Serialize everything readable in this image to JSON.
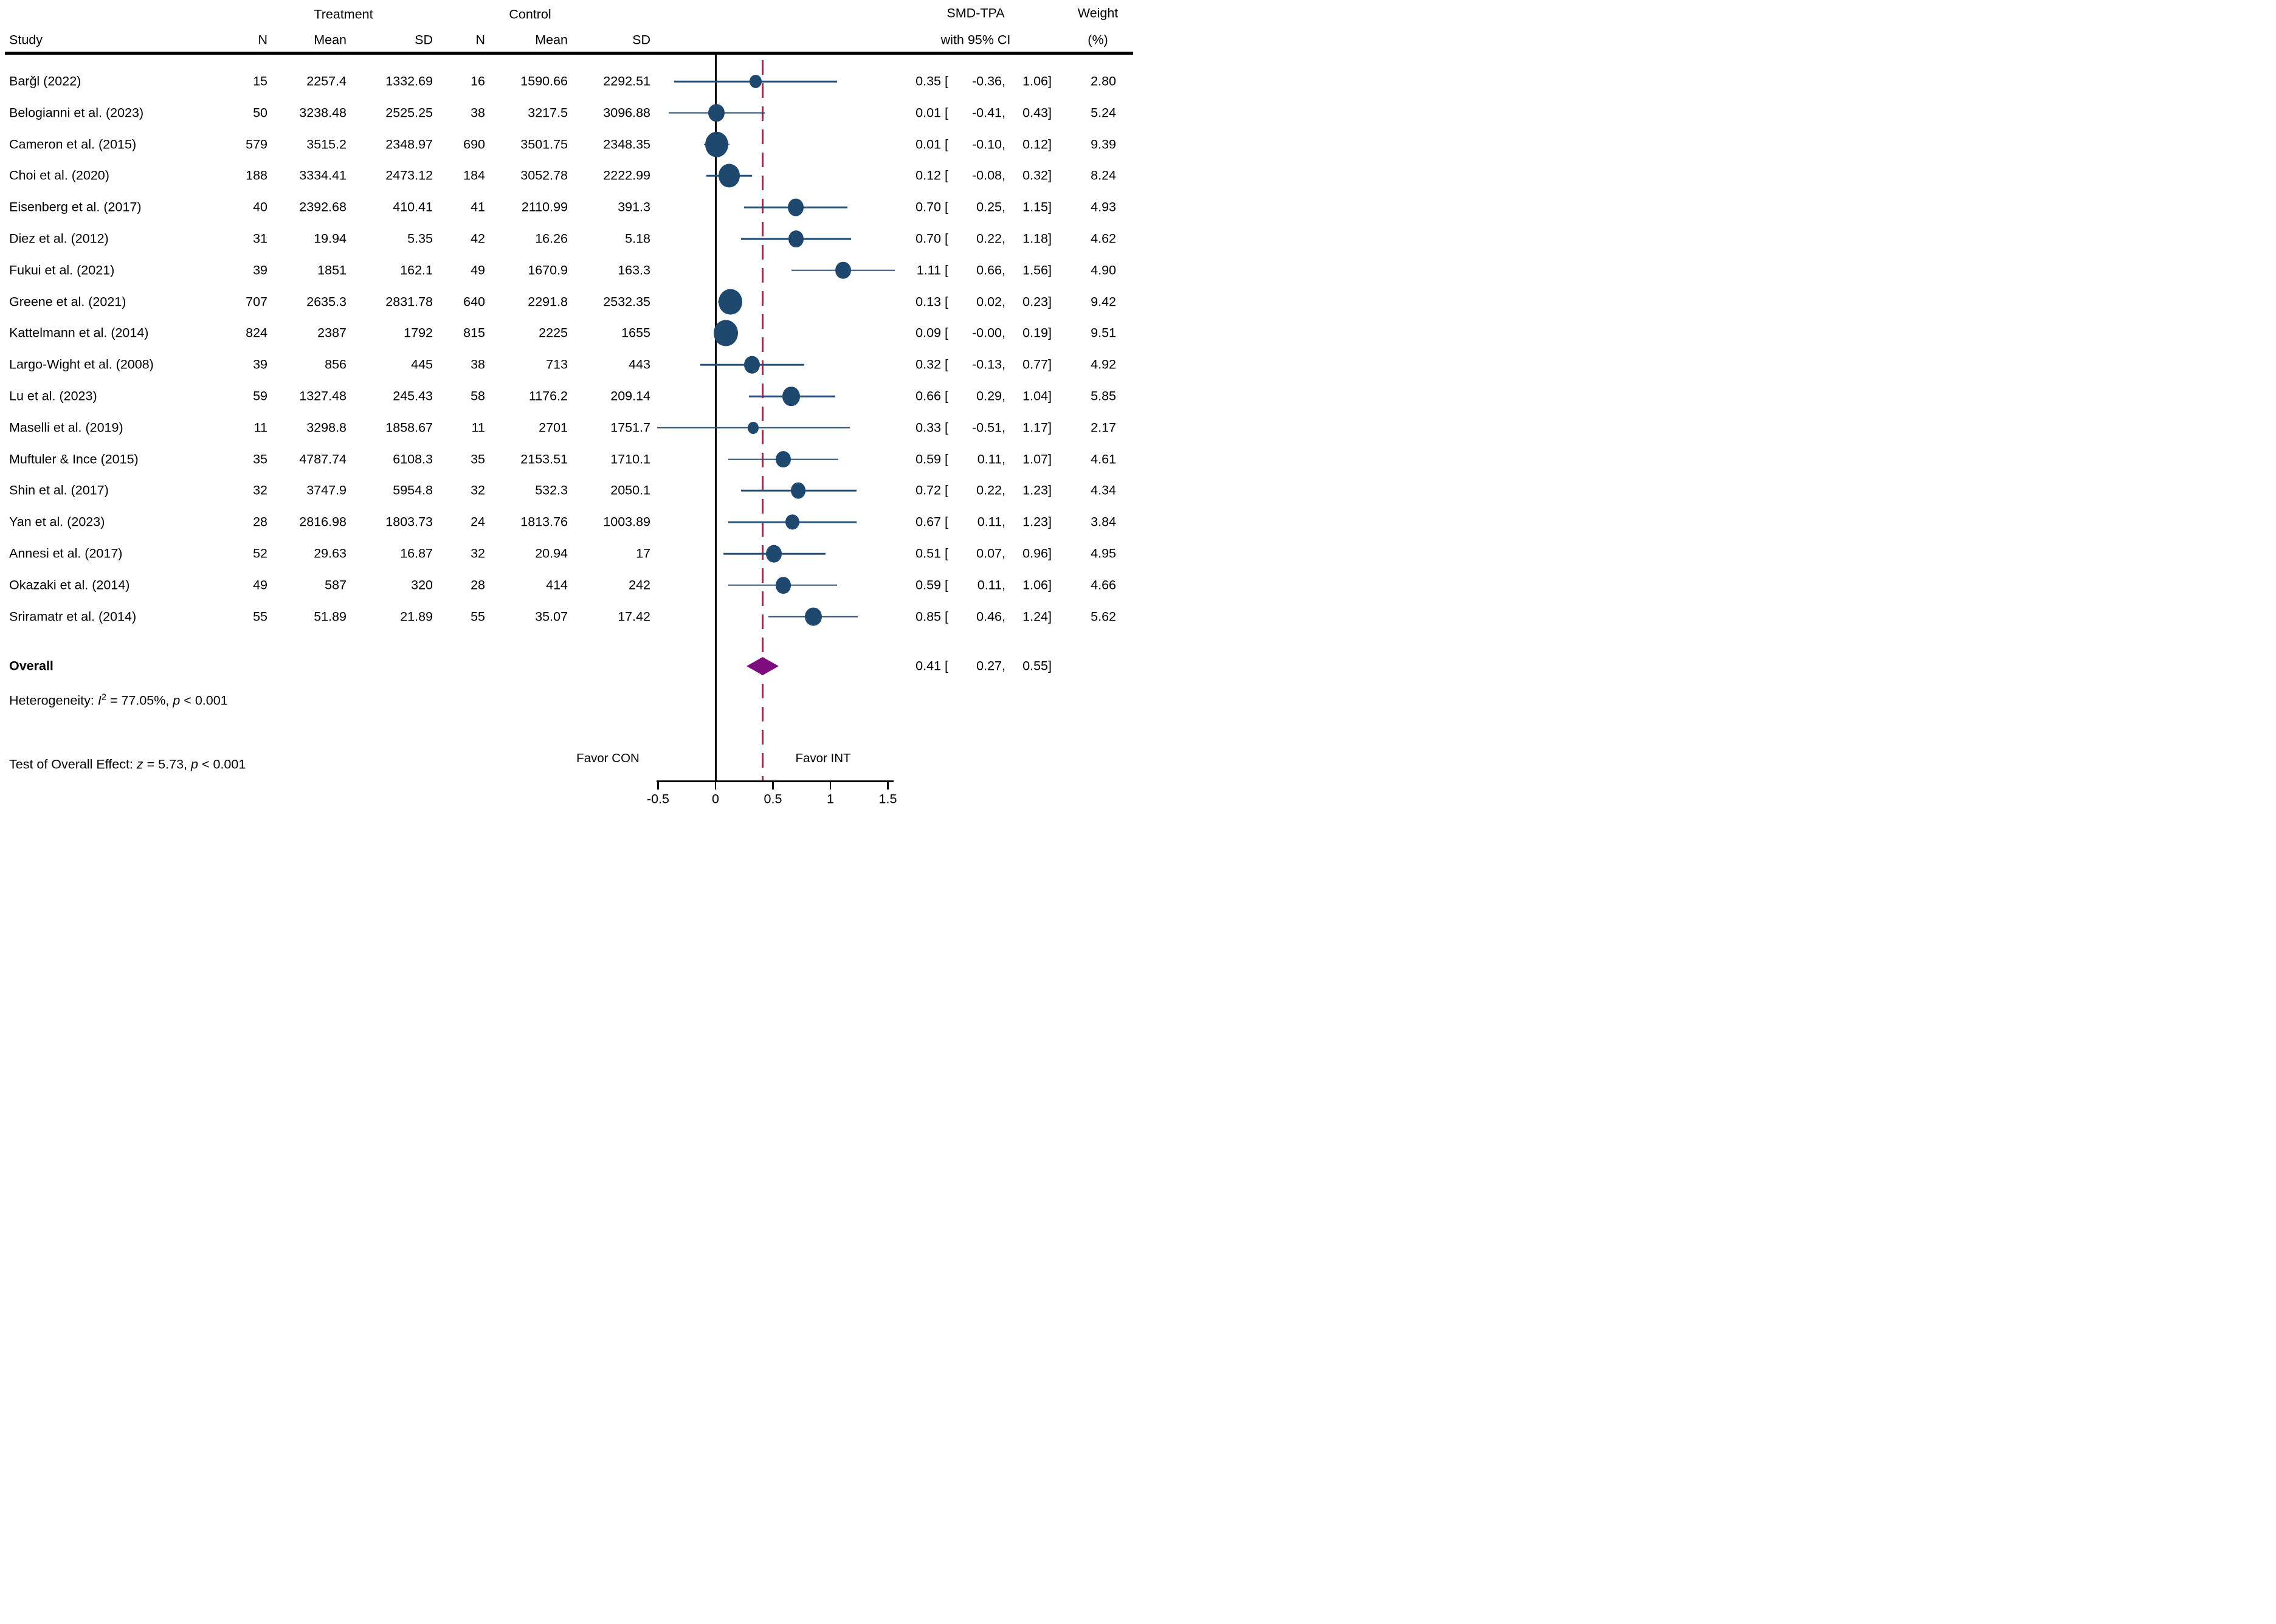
{
  "header": {
    "study": "Study",
    "treatment_group": "Treatment",
    "control_group": "Control",
    "n": "N",
    "mean": "Mean",
    "sd": "SD",
    "n2": "N",
    "mean2": "Mean",
    "sd2": "SD",
    "effect_line1": "SMD-TPA",
    "effect_line2": "with 95% CI",
    "weight_line1": "Weight",
    "weight_line2": "(%)"
  },
  "notes": {
    "het_label": "Heterogeneity:",
    "het_stat": "I",
    "het_sup": "2",
    "het_eq": "= 77.05%,",
    "het_p_var": "p",
    "het_p_val": "< 0.001",
    "test_label": "Test of Overall Effect:",
    "test_z_var": "z",
    "test_z_val": "= 5.73,",
    "test_p_var": "p",
    "test_p_val": "< 0.001"
  },
  "colors": {
    "marker_navy": "#1e486e",
    "ci_navy": "#24527a",
    "dashed_red": "#cb1141",
    "diamond_purple": "#7f0c7f",
    "axis_black": "#000000"
  },
  "chart_data": {
    "type": "forest",
    "title": "Forest plot of SMD-TPA with 95% CI, Treatment vs Control",
    "effect_label": "SMD-TPA with 95% CI",
    "x_axis": {
      "range": [
        -0.5,
        1.5
      ],
      "tick_values": [
        -0.5,
        0,
        0.5,
        1,
        1.5
      ],
      "tick_labels": [
        "-0.5",
        "0",
        "0.5",
        "1",
        "1.5"
      ],
      "zero_line": 0,
      "overall_dashed_line": 0.41
    },
    "favor_left": "Favor CON",
    "favor_right": "Favor INT",
    "studies": [
      {
        "study": "Barğl (2022)",
        "t_n": "15",
        "t_mean": "2257.4",
        "t_sd": "1332.69",
        "c_n": "16",
        "c_mean": "1590.66",
        "c_sd": "2292.51",
        "est": "0.35",
        "lo": "-0.36",
        "hi": "1.06",
        "weight": "2.80"
      },
      {
        "study": "Belogianni et al. (2023)",
        "t_n": "50",
        "t_mean": "3238.48",
        "t_sd": "2525.25",
        "c_n": "38",
        "c_mean": "3217.5",
        "c_sd": "3096.88",
        "est": "0.01",
        "lo": "-0.41",
        "hi": "0.43",
        "weight": "5.24"
      },
      {
        "study": "Cameron et al. (2015)",
        "t_n": "579",
        "t_mean": "3515.2",
        "t_sd": "2348.97",
        "c_n": "690",
        "c_mean": "3501.75",
        "c_sd": "2348.35",
        "est": "0.01",
        "lo": "-0.10",
        "hi": "0.12",
        "weight": "9.39"
      },
      {
        "study": "Choi et al. (2020)",
        "t_n": "188",
        "t_mean": "3334.41",
        "t_sd": "2473.12",
        "c_n": "184",
        "c_mean": "3052.78",
        "c_sd": "2222.99",
        "est": "0.12",
        "lo": "-0.08",
        "hi": "0.32",
        "weight": "8.24"
      },
      {
        "study": "Eisenberg et al. (2017)",
        "t_n": "40",
        "t_mean": "2392.68",
        "t_sd": "410.41",
        "c_n": "41",
        "c_mean": "2110.99",
        "c_sd": "391.3",
        "est": "0.70",
        "lo": "0.25",
        "hi": "1.15",
        "weight": "4.93"
      },
      {
        "study": "Diez et al. (2012)",
        "t_n": "31",
        "t_mean": "19.94",
        "t_sd": "5.35",
        "c_n": "42",
        "c_mean": "16.26",
        "c_sd": "5.18",
        "est": "0.70",
        "lo": "0.22",
        "hi": "1.18",
        "weight": "4.62"
      },
      {
        "study": "Fukui et al. (2021)",
        "t_n": "39",
        "t_mean": "1851",
        "t_sd": "162.1",
        "c_n": "49",
        "c_mean": "1670.9",
        "c_sd": "163.3",
        "est": "1.11",
        "lo": "0.66",
        "hi": "1.56",
        "weight": "4.90"
      },
      {
        "study": "Greene et al. (2021)",
        "t_n": "707",
        "t_mean": "2635.3",
        "t_sd": "2831.78",
        "c_n": "640",
        "c_mean": "2291.8",
        "c_sd": "2532.35",
        "est": "0.13",
        "lo": "0.02",
        "hi": "0.23",
        "weight": "9.42"
      },
      {
        "study": "Kattelmann et al. (2014)",
        "t_n": "824",
        "t_mean": "2387",
        "t_sd": "1792",
        "c_n": "815",
        "c_mean": "2225",
        "c_sd": "1655",
        "est": "0.09",
        "lo": "-0.00",
        "hi": "0.19",
        "weight": "9.51"
      },
      {
        "study": "Largo-Wight et al. (2008)",
        "t_n": "39",
        "t_mean": "856",
        "t_sd": "445",
        "c_n": "38",
        "c_mean": "713",
        "c_sd": "443",
        "est": "0.32",
        "lo": "-0.13",
        "hi": "0.77",
        "weight": "4.92"
      },
      {
        "study": "Lu et al. (2023)",
        "t_n": "59",
        "t_mean": "1327.48",
        "t_sd": "245.43",
        "c_n": "58",
        "c_mean": "1176.2",
        "c_sd": "209.14",
        "est": "0.66",
        "lo": "0.29",
        "hi": "1.04",
        "weight": "5.85"
      },
      {
        "study": "Maselli et al. (2019)",
        "t_n": "11",
        "t_mean": "3298.8",
        "t_sd": "1858.67",
        "c_n": "11",
        "c_mean": "2701",
        "c_sd": "1751.7",
        "est": "0.33",
        "lo": "-0.51",
        "hi": "1.17",
        "weight": "2.17"
      },
      {
        "study": "Muftuler  & Ince (2015)",
        "t_n": "35",
        "t_mean": "4787.74",
        "t_sd": "6108.3",
        "c_n": "35",
        "c_mean": "2153.51",
        "c_sd": "1710.1",
        "est": "0.59",
        "lo": "0.11",
        "hi": "1.07",
        "weight": "4.61"
      },
      {
        "study": "Shin et al. (2017)",
        "t_n": "32",
        "t_mean": "3747.9",
        "t_sd": "5954.8",
        "c_n": "32",
        "c_mean": "532.3",
        "c_sd": "2050.1",
        "est": "0.72",
        "lo": "0.22",
        "hi": "1.23",
        "weight": "4.34"
      },
      {
        "study": "Yan et al. (2023)",
        "t_n": "28",
        "t_mean": "2816.98",
        "t_sd": "1803.73",
        "c_n": "24",
        "c_mean": "1813.76",
        "c_sd": "1003.89",
        "est": "0.67",
        "lo": "0.11",
        "hi": "1.23",
        "weight": "3.84"
      },
      {
        "study": "Annesi et al. (2017)",
        "t_n": "52",
        "t_mean": "29.63",
        "t_sd": "16.87",
        "c_n": "32",
        "c_mean": "20.94",
        "c_sd": "17",
        "est": "0.51",
        "lo": "0.07",
        "hi": "0.96",
        "weight": "4.95"
      },
      {
        "study": "Okazaki et al. (2014)",
        "t_n": "49",
        "t_mean": "587",
        "t_sd": "320",
        "c_n": "28",
        "c_mean": "414",
        "c_sd": "242",
        "est": "0.59",
        "lo": "0.11",
        "hi": "1.06",
        "weight": "4.66"
      },
      {
        "study": "Sriramatr et al. (2014)",
        "t_n": "55",
        "t_mean": "51.89",
        "t_sd": "21.89",
        "c_n": "55",
        "c_mean": "35.07",
        "c_sd": "17.42",
        "est": "0.85",
        "lo": "0.46",
        "hi": "1.24",
        "weight": "5.62"
      }
    ],
    "overall": {
      "label": "Overall",
      "est": "0.41",
      "lo": "0.27",
      "hi": "0.55"
    }
  }
}
